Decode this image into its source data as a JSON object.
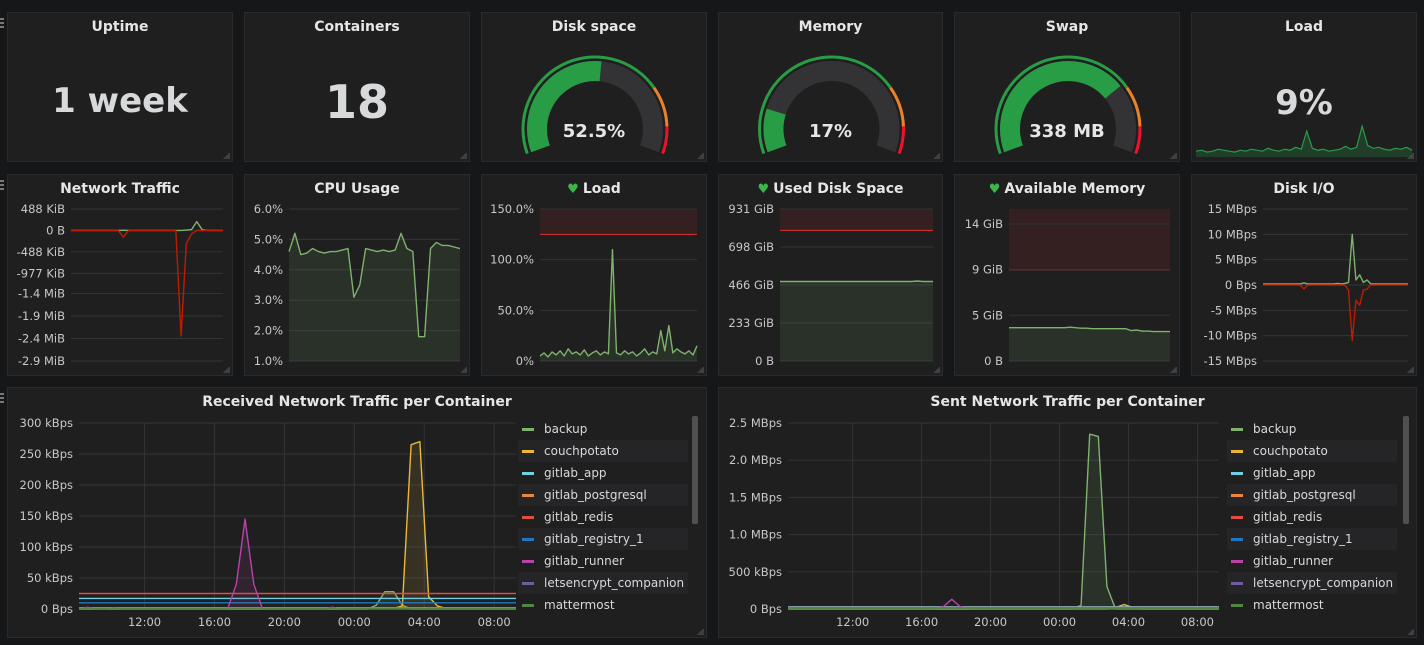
{
  "colors": {
    "green": "#7eb26d",
    "red": "#bf1b00",
    "grid": "#333438",
    "threshold_fill": "#3a2022",
    "threshold_line": "#e02f2f"
  },
  "stats": [
    {
      "title": "Uptime",
      "value": "1 week"
    },
    {
      "title": "Containers",
      "value": "18"
    },
    {
      "title": "Load",
      "value": "9%",
      "sparkline": [
        4,
        5,
        3,
        4,
        6,
        5,
        4,
        3,
        5,
        4,
        6,
        5,
        4,
        7,
        5,
        4,
        6,
        5,
        8,
        6,
        25,
        7,
        5,
        6,
        4,
        5,
        6,
        9,
        6,
        8,
        30,
        10,
        7,
        8,
        6,
        5,
        7,
        6,
        8,
        5
      ]
    }
  ],
  "gauges": [
    {
      "title": "Disk space",
      "value": "52.5%",
      "fraction": 0.525
    },
    {
      "title": "Memory",
      "value": "17%",
      "fraction": 0.17
    },
    {
      "title": "Swap",
      "value": "338 MB",
      "fraction": 0.73
    }
  ],
  "gauge_thresholds": [
    {
      "to": 0.75,
      "color": "#299c46"
    },
    {
      "to": 0.9,
      "color": "#ed8128"
    },
    {
      "to": 1,
      "color": "#f2102b"
    }
  ],
  "chart_data": [
    {
      "id": "net",
      "title": "Network Traffic",
      "type": "line",
      "ylim": [
        -2970,
        488
      ],
      "unit": "KiB",
      "y_ticks": [
        {
          "v": 488,
          "label": "488 KiB"
        },
        {
          "v": 0,
          "label": "0 B"
        },
        {
          "v": -488,
          "label": "-488 KiB"
        },
        {
          "v": -977,
          "label": "-977 KiB"
        },
        {
          "v": -1434,
          "label": "-1.4 MiB"
        },
        {
          "v": -1946,
          "label": "-1.9 MiB"
        },
        {
          "v": -2458,
          "label": "-2.4 MiB"
        },
        {
          "v": -2970,
          "label": "-2.9 MiB"
        }
      ],
      "series": [
        {
          "color": "#7eb26d",
          "values": [
            0,
            0,
            0,
            0,
            0,
            0,
            0,
            0,
            0,
            0,
            5,
            0,
            0,
            0,
            0,
            0,
            0,
            0,
            0,
            0,
            0,
            0,
            10,
            20,
            200,
            20,
            0,
            0,
            0,
            0
          ]
        },
        {
          "color": "#bf1b00",
          "values": [
            0,
            0,
            0,
            0,
            0,
            0,
            0,
            0,
            0,
            0,
            -150,
            0,
            0,
            0,
            0,
            0,
            0,
            0,
            0,
            0,
            0,
            -2400,
            -300,
            -80,
            0,
            0,
            0,
            0,
            0,
            0
          ]
        }
      ]
    },
    {
      "id": "cpu",
      "title": "CPU Usage",
      "type": "area",
      "ylim": [
        1,
        6
      ],
      "y_ticks": [
        {
          "v": 6,
          "label": "6.0%"
        },
        {
          "v": 5,
          "label": "5.0%"
        },
        {
          "v": 4,
          "label": "4.0%"
        },
        {
          "v": 3,
          "label": "3.0%"
        },
        {
          "v": 2,
          "label": "2.0%"
        },
        {
          "v": 1,
          "label": "1.0%"
        }
      ],
      "series": [
        {
          "color": "#7eb26d",
          "fill": true,
          "values": [
            4.6,
            5.2,
            4.5,
            4.55,
            4.7,
            4.6,
            4.55,
            4.6,
            4.6,
            4.65,
            4.7,
            3.1,
            3.5,
            4.7,
            4.65,
            4.6,
            4.65,
            4.6,
            4.65,
            5.2,
            4.7,
            4.6,
            1.8,
            1.8,
            4.7,
            4.9,
            4.8,
            4.8,
            4.75,
            4.7
          ]
        }
      ]
    },
    {
      "id": "load",
      "title": "Load",
      "alert": "ok",
      "type": "area",
      "ylim": [
        0,
        150
      ],
      "threshold": 125,
      "y_ticks": [
        {
          "v": 150,
          "label": "150.0%"
        },
        {
          "v": 100,
          "label": "100.0%"
        },
        {
          "v": 50,
          "label": "50.0%"
        },
        {
          "v": 0,
          "label": "0%"
        }
      ],
      "series": [
        {
          "color": "#7eb26d",
          "fill": true,
          "values": [
            5,
            8,
            4,
            9,
            6,
            10,
            5,
            12,
            7,
            9,
            6,
            11,
            5,
            8,
            10,
            6,
            9,
            7,
            110,
            8,
            6,
            10,
            7,
            9,
            5,
            8,
            12,
            6,
            9,
            7,
            30,
            10,
            35,
            8,
            12,
            9,
            7,
            10,
            6,
            15
          ]
        }
      ]
    },
    {
      "id": "disk",
      "title": "Used Disk Space",
      "alert": "ok",
      "type": "area",
      "ylim": [
        0,
        931
      ],
      "threshold": 800,
      "y_ticks": [
        {
          "v": 931,
          "label": "931 GiB"
        },
        {
          "v": 698,
          "label": "698 GiB"
        },
        {
          "v": 466,
          "label": "466 GiB"
        },
        {
          "v": 233,
          "label": "233 GiB"
        },
        {
          "v": 0,
          "label": "0 B"
        }
      ],
      "series": [
        {
          "color": "#7eb26d",
          "fill": true,
          "values": [
            487,
            487,
            487,
            487,
            487,
            487,
            487,
            487,
            487,
            487,
            487,
            487,
            487,
            487,
            487,
            487,
            487,
            487,
            487,
            487,
            487,
            487,
            487,
            487,
            487,
            487,
            490,
            487,
            487,
            487
          ]
        }
      ]
    },
    {
      "id": "mem",
      "title": "Available Memory",
      "alert": "ok",
      "type": "area",
      "ylim": [
        0,
        15.5
      ],
      "threshold": 9.31,
      "y_ticks": [
        {
          "v": 13.97,
          "label": "14 GiB"
        },
        {
          "v": 9.31,
          "label": "9 GiB"
        },
        {
          "v": 4.66,
          "label": "5 GiB"
        },
        {
          "v": 0,
          "label": "0 B"
        }
      ],
      "series": [
        {
          "color": "#7eb26d",
          "fill": true,
          "values": [
            3.4,
            3.4,
            3.4,
            3.4,
            3.4,
            3.4,
            3.4,
            3.4,
            3.4,
            3.4,
            3.4,
            3.45,
            3.4,
            3.35,
            3.35,
            3.3,
            3.3,
            3.3,
            3.3,
            3.3,
            3.3,
            3.3,
            3.1,
            3.15,
            3.05,
            3.05,
            3.0,
            3.0,
            3.0,
            3.0
          ]
        }
      ]
    },
    {
      "id": "dio",
      "title": "Disk I/O",
      "type": "line",
      "ylim": [
        -15,
        15
      ],
      "y_ticks": [
        {
          "v": 15,
          "label": "15 MBps"
        },
        {
          "v": 10,
          "label": "10 MBps"
        },
        {
          "v": 5,
          "label": "5 MBps"
        },
        {
          "v": 0,
          "label": "0 Bps"
        },
        {
          "v": -5,
          "label": "-5 MBps"
        },
        {
          "v": -10,
          "label": "-10 MBps"
        },
        {
          "v": -15,
          "label": "-15 MBps"
        }
      ],
      "series": [
        {
          "color": "#7eb26d",
          "values": [
            0.2,
            0.2,
            0.2,
            0.2,
            0.2,
            0.2,
            0.2,
            0.2,
            0.2,
            0.2,
            0.2,
            0.4,
            0.2,
            0.2,
            0.2,
            0.2,
            0.2,
            0.2,
            0.2,
            0.2,
            0.3,
            0.2,
            0.3,
            0.5,
            10,
            1,
            2,
            0.5,
            1,
            0.2,
            0.2,
            0.2,
            0.2,
            0.2,
            0.2,
            0.2,
            0.2,
            0.2,
            0.2,
            0.2
          ]
        },
        {
          "color": "#bf1b00",
          "values": [
            0,
            0,
            0,
            0,
            0,
            0,
            0,
            0,
            0,
            0,
            0,
            -0.8,
            0,
            0,
            0,
            0,
            0,
            0,
            0,
            0,
            0,
            0,
            0,
            -1,
            -11,
            -3,
            -4,
            -1,
            -0.8,
            0,
            0,
            0,
            0,
            0,
            0,
            0,
            0,
            0,
            0,
            0
          ]
        }
      ]
    },
    {
      "id": "recv",
      "title": "Received Network Traffic per Container",
      "type": "line",
      "ylim": [
        0,
        300
      ],
      "x_range": [
        "08:15",
        "09:15"
      ],
      "x_ticks": [
        "12:00",
        "16:00",
        "20:00",
        "00:00",
        "04:00",
        "08:00"
      ],
      "y_ticks": [
        {
          "v": 300,
          "label": "300 kBps"
        },
        {
          "v": 250,
          "label": "250 kBps"
        },
        {
          "v": 200,
          "label": "200 kBps"
        },
        {
          "v": 150,
          "label": "150 kBps"
        },
        {
          "v": 100,
          "label": "100 kBps"
        },
        {
          "v": 50,
          "label": "50 kBps"
        },
        {
          "v": 0,
          "label": "0 Bps"
        }
      ],
      "series": [
        {
          "name": "backup",
          "color": "#7eb26d",
          "fill": true,
          "values": [
            0,
            0,
            0,
            0,
            0,
            0,
            0,
            0,
            0,
            0,
            0,
            0,
            0,
            0,
            0,
            0,
            0,
            0,
            0,
            0,
            0,
            0,
            0,
            0,
            0,
            0,
            0,
            0,
            0,
            0,
            0,
            0,
            0,
            0,
            6,
            28,
            28,
            6,
            0,
            0,
            0,
            0,
            0,
            0,
            0,
            0,
            0,
            0,
            0,
            0,
            0
          ]
        },
        {
          "name": "couchpotato",
          "color": "#eab839",
          "fill": true,
          "values": [
            1,
            1,
            1,
            1,
            1,
            1,
            1,
            1,
            1,
            1,
            1,
            1,
            1,
            1,
            1,
            1,
            1,
            1,
            1,
            1,
            1,
            1,
            1,
            1,
            1,
            1,
            1,
            1,
            1,
            1,
            1,
            1,
            1,
            1,
            1,
            1,
            1,
            5,
            265,
            270,
            20,
            5,
            1,
            1,
            1,
            1,
            1,
            1,
            1,
            1,
            1
          ]
        },
        {
          "name": "gitlab_app",
          "color": "#6ed0e0",
          "values": [
            17,
            17
          ]
        },
        {
          "name": "gitlab_postgresql",
          "color": "#ef843c",
          "values": [
            2,
            2
          ]
        },
        {
          "name": "gitlab_redis",
          "color": "#e24d42",
          "values": [
            25,
            25
          ]
        },
        {
          "name": "gitlab_registry_1",
          "color": "#1f78c1",
          "values": [
            10,
            10
          ]
        },
        {
          "name": "gitlab_runner",
          "color": "#ba43a9",
          "fill": true,
          "values": [
            0,
            3,
            0,
            0,
            2,
            0,
            0,
            0,
            0,
            0,
            0,
            0,
            0,
            0,
            0,
            0,
            0,
            0,
            40,
            145,
            40,
            0,
            0,
            0,
            0,
            0,
            0,
            0,
            0,
            3,
            0,
            0,
            0,
            0,
            0,
            0,
            0,
            0,
            0,
            0,
            0,
            0,
            0,
            0,
            0,
            0,
            0,
            0,
            0,
            0,
            0
          ]
        },
        {
          "name": "letsencrypt_companion",
          "color": "#705da0",
          "values": [
            1,
            1
          ]
        },
        {
          "name": "mattermost",
          "color": "#508642",
          "values": [
            1,
            1
          ]
        }
      ]
    },
    {
      "id": "sent",
      "title": "Sent Network Traffic per Container",
      "type": "line",
      "ylim": [
        0,
        2.5
      ],
      "x_range": [
        "08:15",
        "09:15"
      ],
      "x_ticks": [
        "12:00",
        "16:00",
        "20:00",
        "00:00",
        "04:00",
        "08:00"
      ],
      "y_ticks": [
        {
          "v": 2.5,
          "label": "2.5 MBps"
        },
        {
          "v": 2,
          "label": "2.0 MBps"
        },
        {
          "v": 1.5,
          "label": "1.5 MBps"
        },
        {
          "v": 1,
          "label": "1.0 MBps"
        },
        {
          "v": 0.5,
          "label": "500 kBps"
        },
        {
          "v": 0,
          "label": "0 Bps"
        }
      ],
      "series": [
        {
          "name": "backup",
          "color": "#7eb26d",
          "fill": true,
          "values": [
            0,
            0,
            0,
            0,
            0,
            0,
            0,
            0,
            0,
            0,
            0,
            0,
            0,
            0,
            0,
            0,
            0,
            0,
            0,
            0,
            0,
            0,
            0,
            0,
            0,
            0,
            0,
            0,
            0,
            0,
            0,
            0,
            0,
            0,
            0.05,
            2.35,
            2.32,
            0.3,
            0,
            0,
            0,
            0,
            0,
            0,
            0,
            0,
            0,
            0,
            0,
            0,
            0
          ]
        },
        {
          "name": "couchpotato",
          "color": "#eab839",
          "values": [
            0,
            0,
            0,
            0,
            0,
            0,
            0,
            0,
            0,
            0,
            0,
            0,
            0,
            0,
            0,
            0,
            0,
            0,
            0,
            0,
            0,
            0,
            0,
            0,
            0,
            0,
            0,
            0,
            0,
            0,
            0,
            0,
            0,
            0,
            0,
            0,
            0,
            0,
            0.02,
            0.06,
            0.02,
            0,
            0,
            0,
            0,
            0,
            0,
            0,
            0,
            0,
            0
          ]
        },
        {
          "name": "gitlab_app",
          "color": "#6ed0e0",
          "values": [
            0.03,
            0.03
          ]
        },
        {
          "name": "gitlab_postgresql",
          "color": "#ef843c",
          "values": [
            0.01,
            0.01
          ]
        },
        {
          "name": "gitlab_redis",
          "color": "#e24d42",
          "values": [
            0.02,
            0.02
          ]
        },
        {
          "name": "gitlab_registry_1",
          "color": "#1f78c1",
          "values": [
            0.01,
            0.01
          ]
        },
        {
          "name": "gitlab_runner",
          "color": "#ba43a9",
          "values": [
            0,
            0,
            0,
            0,
            0,
            0,
            0,
            0,
            0,
            0,
            0,
            0,
            0,
            0,
            0,
            0,
            0,
            0,
            0.03,
            0.13,
            0.03,
            0,
            0,
            0,
            0,
            0,
            0,
            0,
            0,
            0,
            0,
            0,
            0,
            0,
            0,
            0,
            0,
            0,
            0,
            0,
            0,
            0,
            0,
            0,
            0,
            0,
            0,
            0,
            0,
            0,
            0
          ]
        },
        {
          "name": "letsencrypt_companion",
          "color": "#705da0",
          "values": [
            0.005,
            0.005
          ]
        },
        {
          "name": "mattermost",
          "color": "#508642",
          "values": [
            0.005,
            0.005
          ]
        }
      ]
    }
  ]
}
